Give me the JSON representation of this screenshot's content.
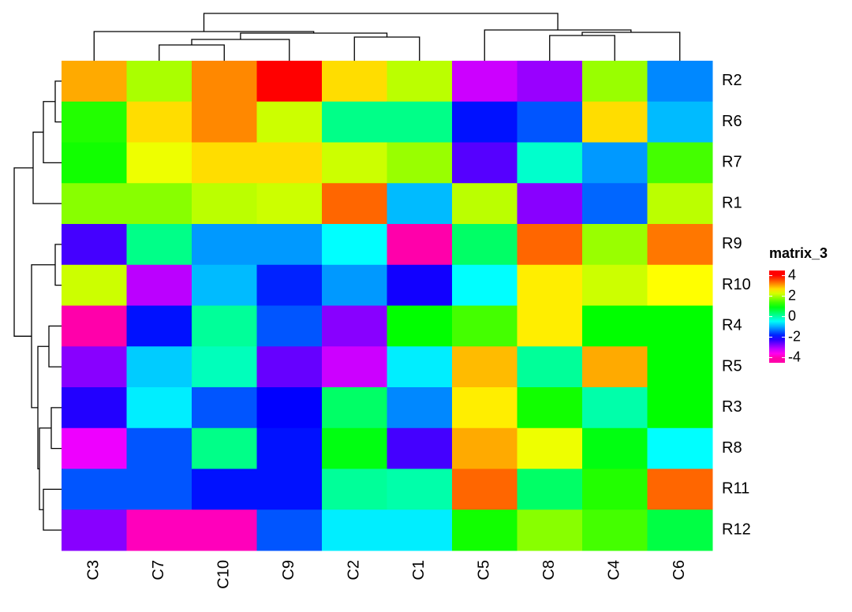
{
  "chart_data": {
    "type": "heatmap",
    "rows": [
      "R2",
      "R6",
      "R7",
      "R1",
      "R9",
      "R10",
      "R4",
      "R5",
      "R3",
      "R8",
      "R11",
      "R12"
    ],
    "columns": [
      "C3",
      "C7",
      "C10",
      "C9",
      "C2",
      "C1",
      "C5",
      "C8",
      "C4",
      "C6"
    ],
    "values": [
      [
        3.0,
        2.0,
        3.2,
        4.0,
        2.7,
        2.1,
        -3.2,
        -2.9,
        1.9,
        -1.2
      ],
      [
        1.2,
        2.7,
        3.2,
        2.2,
        0.2,
        0.2,
        -1.9,
        -1.5,
        2.7,
        -0.9
      ],
      [
        1.1,
        2.4,
        2.7,
        2.7,
        2.2,
        1.9,
        -2.5,
        -0.2,
        -1.1,
        1.4
      ],
      [
        1.8,
        1.8,
        2.1,
        2.2,
        3.4,
        -0.9,
        2.1,
        -2.8,
        -1.4,
        2.1
      ],
      [
        -2.4,
        0.2,
        -1.1,
        -1.1,
        -0.5,
        -4.0,
        0.4,
        3.4,
        1.9,
        3.3
      ],
      [
        2.2,
        -3.1,
        -0.9,
        -1.8,
        -1.1,
        -2.1,
        -0.5,
        2.6,
        2.2,
        2.5
      ],
      [
        -4.0,
        -1.9,
        0.1,
        -1.5,
        -2.8,
        1.0,
        1.4,
        2.6,
        1.0,
        1.0
      ],
      [
        -2.8,
        -0.8,
        -0.1,
        -2.6,
        -3.2,
        -0.6,
        2.9,
        0.1,
        3.0,
        1.0
      ],
      [
        -2.2,
        -0.6,
        -1.5,
        -2.0,
        0.4,
        -1.2,
        2.6,
        1.1,
        0.0,
        1.0
      ],
      [
        -3.4,
        -1.5,
        0.2,
        -1.9,
        0.9,
        -2.4,
        3.0,
        2.4,
        0.9,
        -0.5
      ],
      [
        -1.5,
        -1.5,
        -1.9,
        -1.9,
        0.1,
        0.0,
        3.4,
        0.4,
        1.2,
        3.4
      ],
      [
        -2.8,
        -3.9,
        -3.9,
        -1.5,
        -0.6,
        -0.6,
        1.1,
        1.8,
        1.4,
        0.6
      ]
    ],
    "legend": {
      "title": "matrix_3",
      "ticks": [
        4,
        2,
        0,
        -2,
        -4
      ],
      "lim": [
        -4.5,
        4.5
      ]
    }
  }
}
